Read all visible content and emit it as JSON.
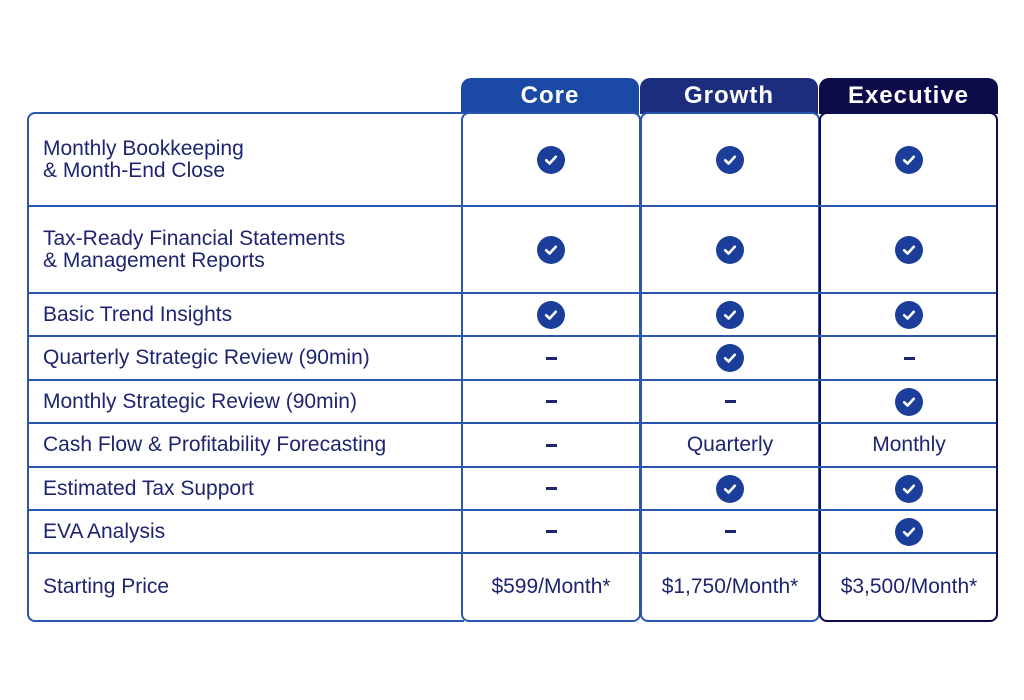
{
  "plans": [
    "Core",
    "Growth",
    "Executive"
  ],
  "rows": [
    {
      "feature": "Monthly Bookkeeping\n& Month-End Close",
      "core": "check",
      "growth": "check",
      "executive": "check"
    },
    {
      "feature": "Tax-Ready Financial Statements\n& Management Reports",
      "core": "check",
      "growth": "check",
      "executive": "check"
    },
    {
      "feature": "Basic Trend Insights",
      "core": "check",
      "growth": "check",
      "executive": "check"
    },
    {
      "feature": "Quarterly Strategic Review (90min)",
      "core": "dash",
      "growth": "check",
      "executive": "dash"
    },
    {
      "feature": "Monthly Strategic Review (90min)",
      "core": "dash",
      "growth": "dash",
      "executive": "check"
    },
    {
      "feature": "Cash Flow & Profitability Forecasting",
      "core": "dash",
      "growth": "Quarterly",
      "executive": "Monthly"
    },
    {
      "feature": "Estimated Tax Support",
      "core": "dash",
      "growth": "check",
      "executive": "check"
    },
    {
      "feature": "EVA Analysis",
      "core": "dash",
      "growth": "dash",
      "executive": "check"
    },
    {
      "feature": "Starting Price",
      "core": "$599/Month*",
      "growth": "$1,750/Month*",
      "executive": "$3,500/Month*"
    }
  ],
  "colors": {
    "core": "#1a4aa6",
    "growth": "#1d2d7d",
    "executive": "#0b0b4a",
    "border": "#2a56b0",
    "text": "#1d2570",
    "check": "#1a3e9a"
  },
  "icons": {
    "check": "check-circle-icon",
    "dash": "dash-icon"
  }
}
